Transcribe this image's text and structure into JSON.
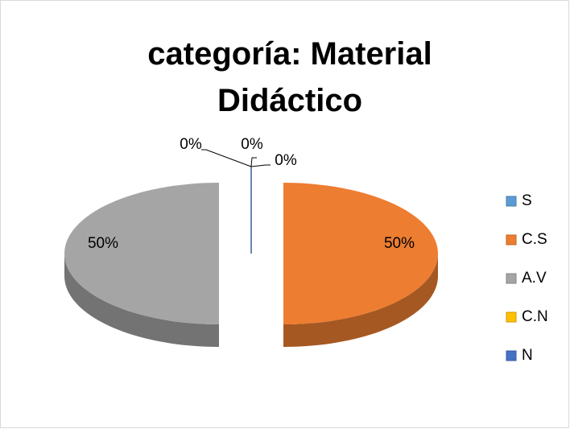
{
  "chart_data": {
    "type": "pie",
    "title": "categoría: Material Didáctico",
    "categories": [
      "S",
      "C.S",
      "A.V",
      "C.N",
      "N"
    ],
    "values": [
      0,
      50,
      50,
      0,
      0
    ],
    "value_labels": [
      "0%",
      "50%",
      "50%",
      "0%",
      "0%"
    ],
    "colors": [
      "#5b9bd5",
      "#ed7d31",
      "#a5a5a5",
      "#ffc000",
      "#4472c4"
    ],
    "legend": "right",
    "three_d": true,
    "exploded": true
  }
}
